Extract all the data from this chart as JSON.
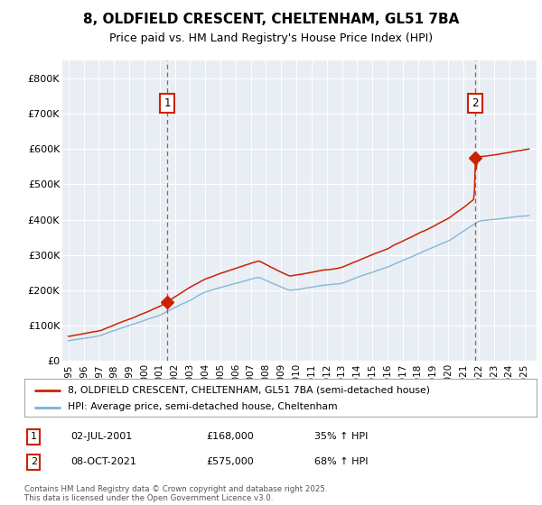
{
  "title": "8, OLDFIELD CRESCENT, CHELTENHAM, GL51 7BA",
  "subtitle": "Price paid vs. HM Land Registry's House Price Index (HPI)",
  "red_line_label": "8, OLDFIELD CRESCENT, CHELTENHAM, GL51 7BA (semi-detached house)",
  "blue_line_label": "HPI: Average price, semi-detached house, Cheltenham",
  "annotation1_date": "02-JUL-2001",
  "annotation1_price": "£168,000",
  "annotation1_hpi": "35% ↑ HPI",
  "annotation2_date": "08-OCT-2021",
  "annotation2_price": "£575,000",
  "annotation2_hpi": "68% ↑ HPI",
  "footer": "Contains HM Land Registry data © Crown copyright and database right 2025.\nThis data is licensed under the Open Government Licence v3.0.",
  "xlim": [
    1994.6,
    2025.8
  ],
  "ylim": [
    0,
    850000
  ],
  "yticks": [
    0,
    100000,
    200000,
    300000,
    400000,
    500000,
    600000,
    700000,
    800000
  ],
  "ytick_labels": [
    "£0",
    "£100K",
    "£200K",
    "£300K",
    "£400K",
    "£500K",
    "£600K",
    "£700K",
    "£800K"
  ],
  "bg_color": "#ffffff",
  "plot_bg_color": "#e8eef4",
  "grid_color": "#ffffff",
  "red_color": "#cc2200",
  "blue_color": "#7ab0d4",
  "vline_color": "#cc2200",
  "marker1_x": 2001.5,
  "marker1_y": 168000,
  "marker2_x": 2021.75,
  "marker2_y": 575000,
  "sale1_year": 2001.5,
  "sale2_year": 2021.75,
  "title_fontsize": 11,
  "subtitle_fontsize": 9
}
